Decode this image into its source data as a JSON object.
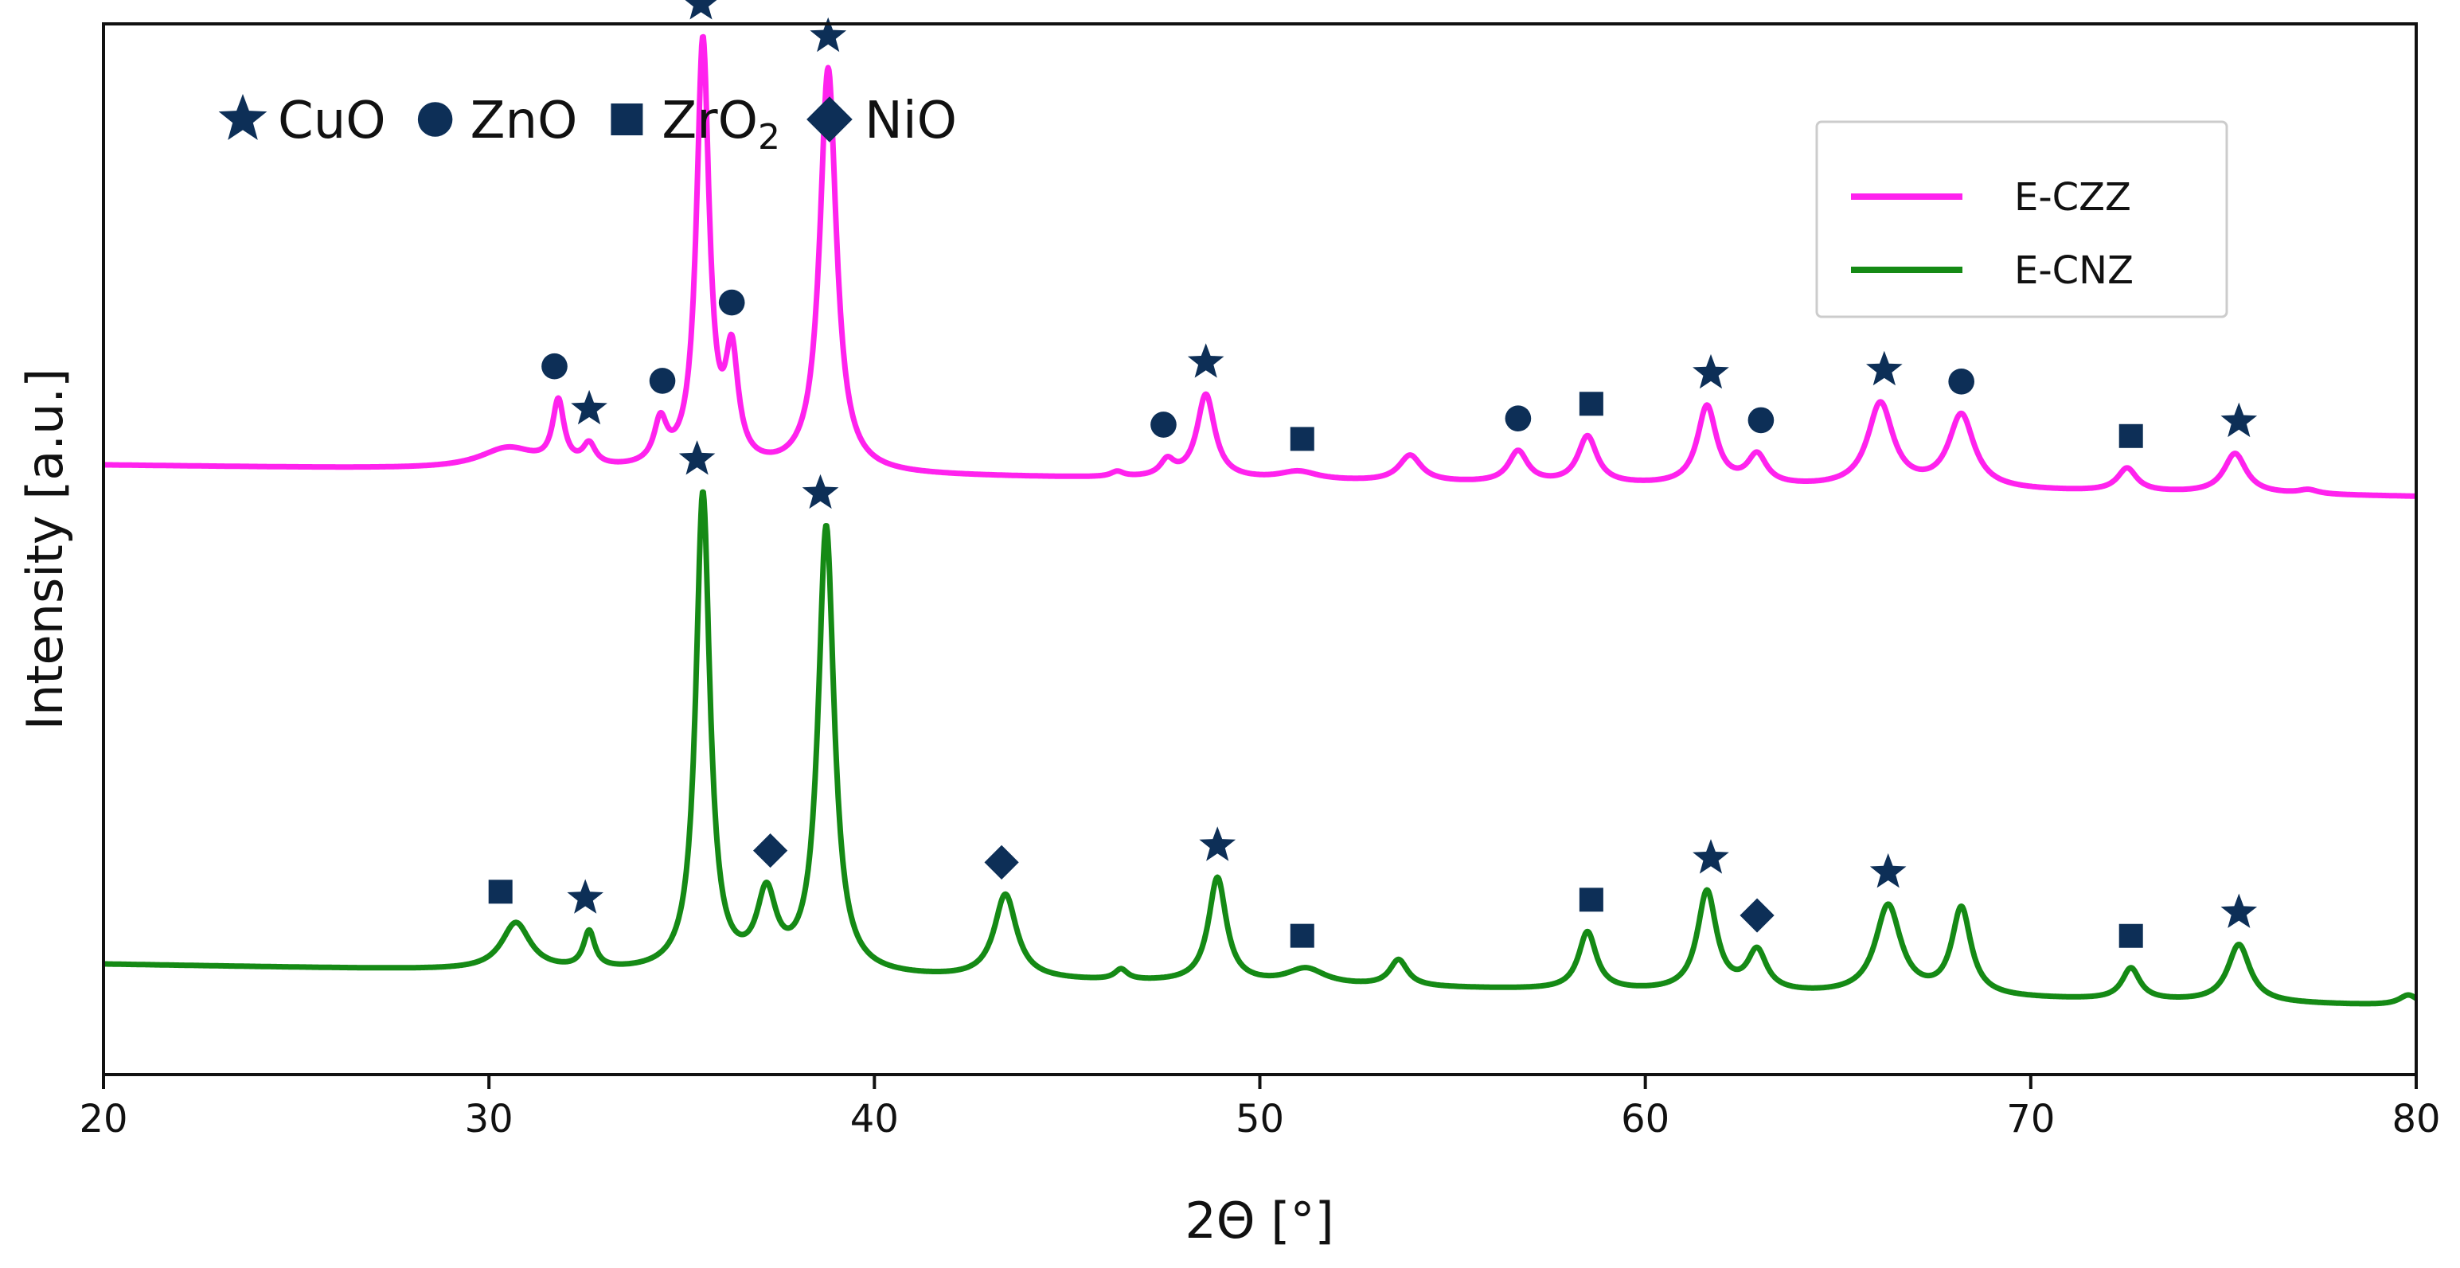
{
  "chart_data": {
    "type": "line",
    "title": "",
    "xlabel": "2Θ [°]",
    "ylabel": "Intensity [a.u.]",
    "xlim": [
      20,
      80
    ],
    "ylim": [
      0,
      1
    ],
    "xticks": [
      20,
      30,
      40,
      50,
      60,
      70,
      80
    ],
    "yticks_shown": false,
    "grid": false,
    "legend": {
      "placement": "top-right",
      "entries": [
        {
          "label": "E-CZZ",
          "color": "#ff22ee"
        },
        {
          "label": "E-CNZ",
          "color": "#158a15"
        }
      ]
    },
    "phase_legend": {
      "placement": "top-left",
      "color": "#0d2f57",
      "entries": [
        {
          "marker": "star",
          "label": "CuO"
        },
        {
          "marker": "circle",
          "label": "ZnO"
        },
        {
          "marker": "square",
          "label": "ZrO",
          "subscript": "2"
        },
        {
          "marker": "diamond",
          "label": "NiO"
        }
      ]
    },
    "series": [
      {
        "name": "E-CZZ",
        "color": "#ff22ee",
        "baseline_start": 0.58,
        "baseline_end": 0.55,
        "peaks": [
          {
            "x": 30.5,
            "h": 0.02,
            "w": 0.9
          },
          {
            "x": 31.8,
            "h": 0.06,
            "w": 0.18
          },
          {
            "x": 32.6,
            "h": 0.02,
            "w": 0.2
          },
          {
            "x": 34.45,
            "h": 0.04,
            "w": 0.2
          },
          {
            "x": 35.55,
            "h": 0.405,
            "w": 0.2
          },
          {
            "x": 36.3,
            "h": 0.1,
            "w": 0.2
          },
          {
            "x": 38.8,
            "h": 0.385,
            "w": 0.26
          },
          {
            "x": 46.3,
            "h": 0.005,
            "w": 0.2
          },
          {
            "x": 47.6,
            "h": 0.015,
            "w": 0.22
          },
          {
            "x": 48.6,
            "h": 0.08,
            "w": 0.28
          },
          {
            "x": 51.0,
            "h": 0.008,
            "w": 0.6
          },
          {
            "x": 53.9,
            "h": 0.025,
            "w": 0.35
          },
          {
            "x": 56.7,
            "h": 0.03,
            "w": 0.3
          },
          {
            "x": 58.5,
            "h": 0.045,
            "w": 0.3
          },
          {
            "x": 61.6,
            "h": 0.075,
            "w": 0.3
          },
          {
            "x": 62.9,
            "h": 0.028,
            "w": 0.3
          },
          {
            "x": 66.1,
            "h": 0.08,
            "w": 0.4
          },
          {
            "x": 68.2,
            "h": 0.07,
            "w": 0.4
          },
          {
            "x": 72.5,
            "h": 0.022,
            "w": 0.3
          },
          {
            "x": 75.3,
            "h": 0.038,
            "w": 0.35
          },
          {
            "x": 77.2,
            "h": 0.004,
            "w": 0.3
          }
        ],
        "markers": [
          {
            "x": 31.7,
            "type": "circle"
          },
          {
            "x": 32.6,
            "type": "star"
          },
          {
            "x": 34.5,
            "type": "circle"
          },
          {
            "x": 35.5,
            "type": "star"
          },
          {
            "x": 36.3,
            "type": "circle"
          },
          {
            "x": 38.8,
            "type": "star"
          },
          {
            "x": 47.5,
            "type": "circle"
          },
          {
            "x": 48.6,
            "type": "star"
          },
          {
            "x": 51.1,
            "type": "square"
          },
          {
            "x": 56.7,
            "type": "circle"
          },
          {
            "x": 58.6,
            "type": "square"
          },
          {
            "x": 61.7,
            "type": "star"
          },
          {
            "x": 63.0,
            "type": "circle"
          },
          {
            "x": 66.2,
            "type": "star"
          },
          {
            "x": 68.2,
            "type": "circle"
          },
          {
            "x": 72.6,
            "type": "square"
          },
          {
            "x": 75.4,
            "type": "star"
          }
        ]
      },
      {
        "name": "E-CNZ",
        "color": "#158a15",
        "baseline_start": 0.105,
        "baseline_end": 0.065,
        "peaks": [
          {
            "x": 30.7,
            "h": 0.045,
            "w": 0.45
          },
          {
            "x": 32.6,
            "h": 0.035,
            "w": 0.18
          },
          {
            "x": 35.55,
            "h": 0.455,
            "w": 0.22
          },
          {
            "x": 37.2,
            "h": 0.07,
            "w": 0.3
          },
          {
            "x": 38.75,
            "h": 0.425,
            "w": 0.25
          },
          {
            "x": 43.4,
            "h": 0.08,
            "w": 0.35
          },
          {
            "x": 46.4,
            "h": 0.01,
            "w": 0.2
          },
          {
            "x": 48.9,
            "h": 0.1,
            "w": 0.28
          },
          {
            "x": 51.2,
            "h": 0.015,
            "w": 0.6
          },
          {
            "x": 53.6,
            "h": 0.025,
            "w": 0.28
          },
          {
            "x": 58.5,
            "h": 0.055,
            "w": 0.28
          },
          {
            "x": 61.6,
            "h": 0.095,
            "w": 0.3
          },
          {
            "x": 62.9,
            "h": 0.038,
            "w": 0.3
          },
          {
            "x": 66.3,
            "h": 0.085,
            "w": 0.4
          },
          {
            "x": 68.2,
            "h": 0.083,
            "w": 0.3
          },
          {
            "x": 72.6,
            "h": 0.03,
            "w": 0.28
          },
          {
            "x": 75.4,
            "h": 0.055,
            "w": 0.35
          },
          {
            "x": 79.8,
            "h": 0.01,
            "w": 0.3
          }
        ],
        "markers": [
          {
            "x": 30.3,
            "type": "square"
          },
          {
            "x": 32.5,
            "type": "star"
          },
          {
            "x": 35.4,
            "type": "star"
          },
          {
            "x": 37.3,
            "type": "diamond"
          },
          {
            "x": 38.6,
            "type": "star"
          },
          {
            "x": 43.3,
            "type": "diamond"
          },
          {
            "x": 48.9,
            "type": "star"
          },
          {
            "x": 51.1,
            "type": "square"
          },
          {
            "x": 58.6,
            "type": "square"
          },
          {
            "x": 61.7,
            "type": "star"
          },
          {
            "x": 62.9,
            "type": "diamond"
          },
          {
            "x": 66.3,
            "type": "star"
          },
          {
            "x": 72.6,
            "type": "square"
          },
          {
            "x": 75.4,
            "type": "star"
          }
        ]
      }
    ]
  }
}
